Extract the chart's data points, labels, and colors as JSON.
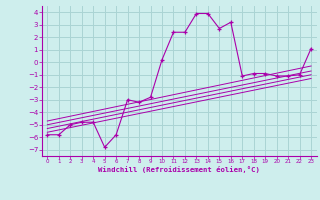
{
  "background_color": "#ceeeed",
  "grid_color": "#aad4d4",
  "line_color": "#aa00aa",
  "marker_color": "#aa00aa",
  "xlabel": "Windchill (Refroidissement éolien,°C)",
  "xlabel_color": "#aa00aa",
  "tick_color": "#aa00aa",
  "xlim": [
    -0.5,
    23.5
  ],
  "ylim": [
    -7.5,
    4.5
  ],
  "yticks": [
    -7,
    -6,
    -5,
    -4,
    -3,
    -2,
    -1,
    0,
    1,
    2,
    3,
    4
  ],
  "xticks": [
    0,
    1,
    2,
    3,
    4,
    5,
    6,
    7,
    8,
    9,
    10,
    11,
    12,
    13,
    14,
    15,
    16,
    17,
    18,
    19,
    20,
    21,
    22,
    23
  ],
  "main_x": [
    0,
    1,
    2,
    3,
    4,
    5,
    6,
    7,
    8,
    9,
    10,
    11,
    12,
    13,
    14,
    15,
    16,
    17,
    18,
    19,
    20,
    21,
    22,
    23
  ],
  "main_y": [
    -5.8,
    -5.8,
    -5.0,
    -4.8,
    -4.8,
    -6.8,
    -5.8,
    -3.0,
    -3.2,
    -2.8,
    0.2,
    2.4,
    2.4,
    3.9,
    3.9,
    2.7,
    3.2,
    -1.1,
    -0.9,
    -0.9,
    -1.1,
    -1.1,
    -1.0,
    1.1
  ],
  "line1_x": [
    0,
    23
  ],
  "line1_y": [
    -5.6,
    -1.3
  ],
  "line2_x": [
    0,
    23
  ],
  "line2_y": [
    -5.3,
    -1.0
  ],
  "line3_x": [
    0,
    23
  ],
  "line3_y": [
    -5.0,
    -0.7
  ],
  "line4_x": [
    0,
    23
  ],
  "line4_y": [
    -4.7,
    -0.3
  ]
}
